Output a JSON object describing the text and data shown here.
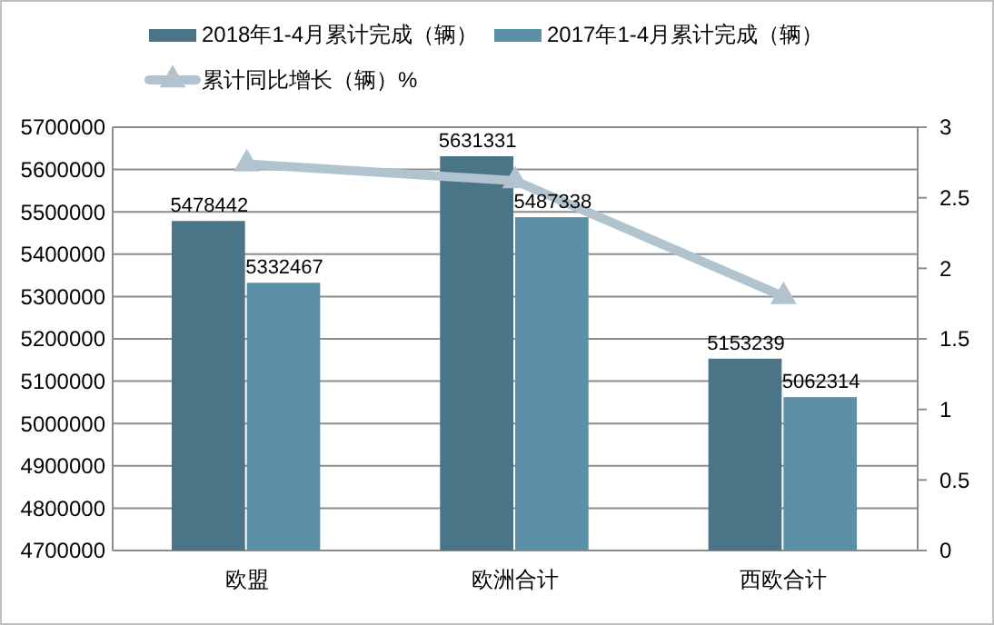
{
  "chart_data": {
    "type": "bar",
    "categories": [
      "欧盟",
      "欧洲合计",
      "西欧合计"
    ],
    "series": [
      {
        "name": "2018年1-4月累计完成（辆）",
        "color": "#4a7587",
        "values": [
          5478442,
          5631331,
          5153239
        ],
        "value_labels": [
          "5478442",
          "5631331",
          "5153239"
        ]
      },
      {
        "name": "2017年1-4月累计完成（辆）",
        "color": "#5b90a8",
        "values": [
          5332467,
          5487338,
          5062314
        ],
        "value_labels": [
          "5332467",
          "5487338",
          "5062314"
        ]
      },
      {
        "name": "累计同比增长（辆）%",
        "type": "line",
        "axis": "y2",
        "color": "#b0c3cf",
        "marker": "triangle",
        "values": [
          2.74,
          2.62,
          1.8
        ]
      }
    ],
    "ylim": [
      4700000,
      5700000
    ],
    "yticks": [
      4700000,
      4800000,
      4900000,
      5000000,
      5100000,
      5200000,
      5300000,
      5400000,
      5500000,
      5600000,
      5700000
    ],
    "y2lim": [
      0,
      3
    ],
    "y2ticks": [
      0,
      0.5,
      1,
      1.5,
      2,
      2.5,
      3
    ],
    "grid": "y",
    "legend": "top"
  }
}
